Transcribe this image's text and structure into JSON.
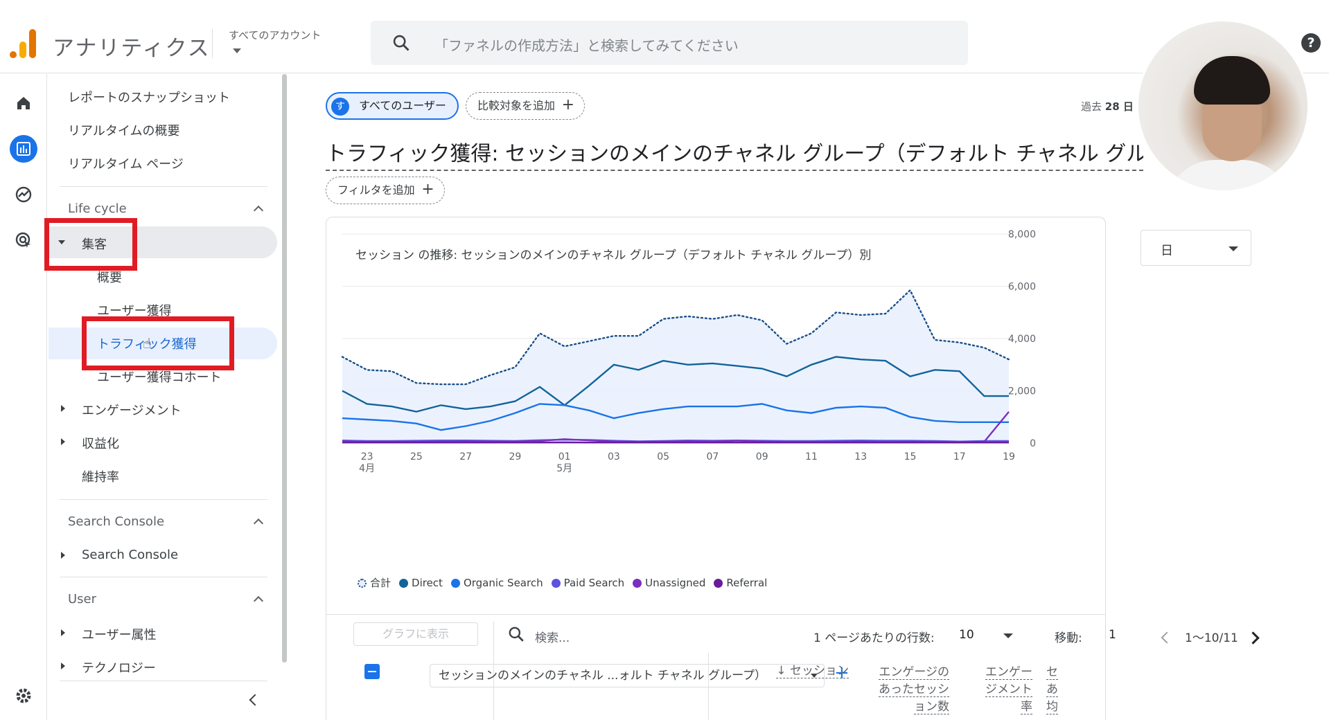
{
  "header": {
    "app_title": "アナリティクス",
    "account_label": "すべてのアカウント",
    "search_placeholder": "「ファネルの作成方法」と検索してみてください",
    "help": "?"
  },
  "rail": {
    "icons": [
      "home-icon",
      "reports-icon",
      "explore-icon",
      "advertising-icon",
      "settings-icon"
    ]
  },
  "sidebar": {
    "top_items": [
      "レポートのスナップショット",
      "リアルタイムの概要",
      "リアルタイム ページ"
    ],
    "lifecycle": {
      "title": "Life cycle",
      "acquisition": "集客",
      "acquisition_children": [
        "概要",
        "ユーザー獲得",
        "トラフィック獲得",
        "ユーザー獲得コホート"
      ],
      "others": [
        "エンゲージメント",
        "収益化",
        "維持率"
      ]
    },
    "search_console": {
      "title": "Search Console",
      "item": "Search Console"
    },
    "user": {
      "title": "User",
      "items": [
        "ユーザー属性",
        "テクノロジー"
      ]
    }
  },
  "main": {
    "chip_all_users": "すべてのユーザー",
    "chip_all_users_avatar": "す",
    "chip_add_compare": "比較対象を追加",
    "date_range_prefix": "過去",
    "date_range_value": "28 日",
    "page_title": "トラフィック獲得: セッションのメインのチャネル グループ（デフォルト チャネル グループ）",
    "chip_add_filter": "フィルタを追加",
    "card_title": "セッション の推移: セッションのメインのチャネル グループ（デフォルト チャネル グループ）別",
    "granularity": "日"
  },
  "table": {
    "plot_button": "グラフに表示",
    "search_placeholder": "検索...",
    "rows_per_page_label": "1 ページあたりの行数:",
    "rows_per_page": "10",
    "goto_label": "移動:",
    "goto_value": "1",
    "page_range": "1〜10/11",
    "dimension": "セッションのメインのチャネル ...ォルト チャネル グループ）",
    "columns": [
      [
        "↓ セッション"
      ],
      [
        "エンゲージの",
        "あったセッシ",
        "ョン数"
      ],
      [
        "エンゲー",
        "ジメント",
        "率"
      ],
      [
        "セ",
        "あ",
        "均"
      ]
    ]
  },
  "chart_data": {
    "type": "line",
    "x": [
      "4/22",
      "4/23",
      "4/24",
      "4/25",
      "4/26",
      "4/27",
      "4/28",
      "4/29",
      "4/30",
      "5/1",
      "5/2",
      "5/3",
      "5/4",
      "5/5",
      "5/6",
      "5/7",
      "5/8",
      "5/9",
      "5/10",
      "5/11",
      "5/12",
      "5/13",
      "5/14",
      "5/15",
      "5/16",
      "5/17",
      "5/18",
      "5/19"
    ],
    "tick_labels": [
      "23",
      "25",
      "27",
      "29",
      "01",
      "03",
      "05",
      "07",
      "09",
      "11",
      "13",
      "15",
      "17",
      "19"
    ],
    "tick_sublabels": {
      "23": "4月",
      "01": "5月"
    },
    "ylim": [
      0,
      8000
    ],
    "y_ticks": [
      "8,000",
      "6,000",
      "4,000",
      "2,000",
      "0"
    ],
    "series": [
      {
        "name": "合計",
        "color": "#1a4e8a",
        "style": "dotted-area",
        "values": [
          3300,
          2800,
          2750,
          2300,
          2250,
          2250,
          2600,
          2900,
          4200,
          3700,
          3900,
          4100,
          4100,
          4750,
          4850,
          4750,
          4900,
          4700,
          3800,
          4200,
          5000,
          4900,
          4950,
          5850,
          3950,
          3850,
          3650,
          3200
        ]
      },
      {
        "name": "Direct",
        "color": "#12639a",
        "values": [
          2000,
          1500,
          1400,
          1200,
          1450,
          1300,
          1400,
          1600,
          2150,
          1450,
          2200,
          3000,
          2800,
          3150,
          3000,
          3050,
          2950,
          2850,
          2550,
          3000,
          3300,
          3200,
          3150,
          2550,
          2800,
          2750,
          1800,
          1800
        ]
      },
      {
        "name": "Organic Search",
        "color": "#1a73e8",
        "values": [
          950,
          900,
          850,
          750,
          500,
          650,
          850,
          1150,
          1500,
          1450,
          1250,
          950,
          1150,
          1300,
          1400,
          1400,
          1400,
          1500,
          1250,
          1150,
          1350,
          1400,
          1350,
          1000,
          850,
          800,
          800,
          800
        ]
      },
      {
        "name": "Paid Search",
        "color": "#5c51e0",
        "values": [
          100,
          80,
          80,
          90,
          100,
          100,
          90,
          80,
          110,
          130,
          120,
          90,
          70,
          80,
          100,
          90,
          100,
          90,
          80,
          80,
          90,
          100,
          90,
          90,
          80,
          60,
          80,
          80
        ]
      },
      {
        "name": "Unassigned",
        "color": "#7b2fbf",
        "values": [
          60,
          50,
          50,
          50,
          50,
          60,
          60,
          60,
          80,
          150,
          100,
          60,
          50,
          60,
          70,
          60,
          90,
          60,
          40,
          40,
          40,
          50,
          40,
          50,
          40,
          30,
          50,
          1200
        ]
      },
      {
        "name": "Referral",
        "color": "#6a1b9a",
        "values": [
          20,
          20,
          20,
          20,
          20,
          20,
          20,
          20,
          20,
          30,
          20,
          20,
          20,
          20,
          20,
          20,
          20,
          20,
          20,
          20,
          20,
          20,
          20,
          20,
          20,
          20,
          20,
          20
        ]
      }
    ]
  }
}
